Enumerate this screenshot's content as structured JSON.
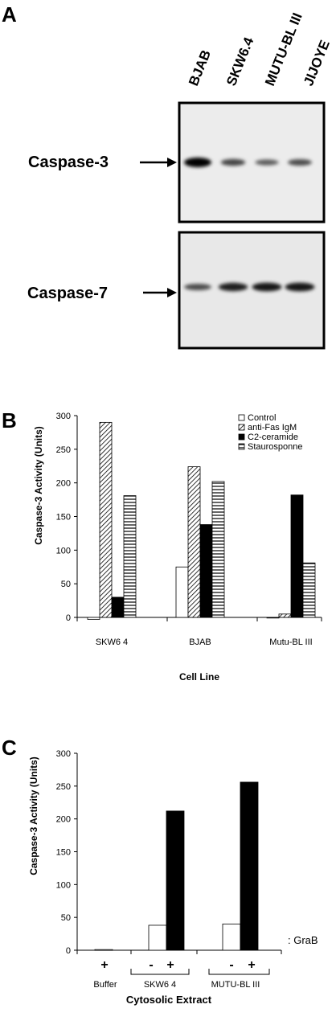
{
  "panel_a": {
    "letter": "A",
    "lanes": [
      "BJAB",
      "SKW6.4",
      "MUTU-BL III",
      "JIJOYE"
    ],
    "blots": [
      {
        "label": "Caspase-3",
        "band_intensity": [
          1.0,
          0.55,
          0.4,
          0.5
        ]
      },
      {
        "label": "Caspase-7",
        "band_intensity": [
          0.5,
          0.8,
          0.85,
          0.85
        ]
      }
    ]
  },
  "chart_data": [
    {
      "panel": "B",
      "type": "bar",
      "ylabel": "Caspase-3 Activity (Units)",
      "xlabel": "Cell Line",
      "ylim": [
        0,
        300
      ],
      "yticks": [
        0,
        50,
        100,
        150,
        200,
        250,
        300
      ],
      "categories": [
        "SKW6 4",
        "BJAB",
        "Mutu-BL III"
      ],
      "legend_position": "top-right",
      "series": [
        {
          "name": "Control",
          "fill": "white",
          "values": [
            -3,
            75,
            0
          ]
        },
        {
          "name": "anti-Fas IgM",
          "fill": "diagonal",
          "values": [
            290,
            224,
            5
          ]
        },
        {
          "name": "C2-ceramide",
          "fill": "black",
          "values": [
            30,
            138,
            182
          ]
        },
        {
          "name": "Staurosponne",
          "fill": "horizontal",
          "values": [
            181,
            202,
            81
          ]
        }
      ]
    },
    {
      "panel": "C",
      "type": "bar",
      "ylabel": "Caspase-3 Activity (Units)",
      "xlabel": "Cytosolic Extract",
      "ylim": [
        0,
        300
      ],
      "yticks": [
        0,
        50,
        100,
        150,
        200,
        250,
        300
      ],
      "grab_label": ": GraB",
      "groups": [
        {
          "name": "Buffer",
          "bars": [
            {
              "sign": "+",
              "value": 1,
              "fill": "white"
            }
          ]
        },
        {
          "name": "SKW6 4",
          "bars": [
            {
              "sign": "-",
              "value": 38,
              "fill": "white"
            },
            {
              "sign": "+",
              "value": 212,
              "fill": "black"
            }
          ]
        },
        {
          "name": "MUTU-BL III",
          "bars": [
            {
              "sign": "-",
              "value": 40,
              "fill": "white"
            },
            {
              "sign": "+",
              "value": 256,
              "fill": "black"
            }
          ]
        }
      ]
    }
  ],
  "panel_b": {
    "letter": "B"
  },
  "panel_c": {
    "letter": "C"
  }
}
